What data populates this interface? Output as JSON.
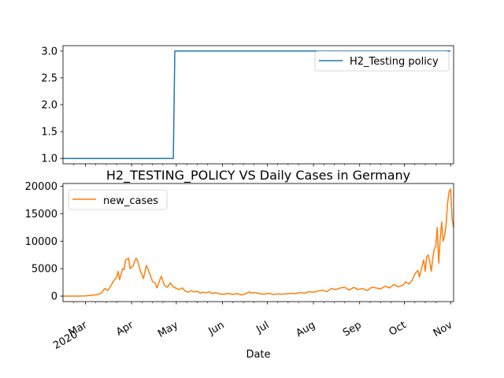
{
  "chart_data": [
    {
      "type": "line",
      "title": "",
      "xlabel": "",
      "ylabel": "",
      "ylim": [
        0.9,
        3.1
      ],
      "yticks": [
        "1.0",
        "1.5",
        "2.0",
        "2.5",
        "3.0"
      ],
      "legend_position": "top-right",
      "series": [
        {
          "name": "H2_Testing policy",
          "color": "#1f77b4",
          "points": [
            [
              "2020-02-15",
              1
            ],
            [
              "2020-04-29",
              1
            ],
            [
              "2020-04-30",
              3
            ],
            [
              "2020-11-01",
              3
            ]
          ]
        }
      ]
    },
    {
      "type": "line",
      "title": "H2_TESTING_POLICY VS Daily Cases in Germany",
      "xlabel": "Date",
      "ylabel": "",
      "ylim": [
        -1000,
        20500
      ],
      "yticks": [
        "0",
        "5000",
        "10000",
        "15000",
        "20000"
      ],
      "xticks": [
        "Mar\n2020",
        "Apr",
        "May",
        "Jun",
        "Jul",
        "Aug",
        "Sep",
        "Oct",
        "Nov"
      ],
      "legend_position": "top-left",
      "series": [
        {
          "name": "new_cases",
          "color": "#ff7f0e",
          "points": [
            [
              "2020-02-15",
              0
            ],
            [
              "2020-02-25",
              10
            ],
            [
              "2020-03-01",
              50
            ],
            [
              "2020-03-05",
              150
            ],
            [
              "2020-03-09",
              250
            ],
            [
              "2020-03-12",
              600
            ],
            [
              "2020-03-14",
              1400
            ],
            [
              "2020-03-16",
              1000
            ],
            [
              "2020-03-18",
              1800
            ],
            [
              "2020-03-20",
              2800
            ],
            [
              "2020-03-22",
              3500
            ],
            [
              "2020-03-23",
              4500
            ],
            [
              "2020-03-24",
              3000
            ],
            [
              "2020-03-26",
              5000
            ],
            [
              "2020-03-27",
              4800
            ],
            [
              "2020-03-28",
              6600
            ],
            [
              "2020-03-30",
              6900
            ],
            [
              "2020-03-31",
              5000
            ],
            [
              "2020-04-02",
              5500
            ],
            [
              "2020-04-03",
              6300
            ],
            [
              "2020-04-04",
              6900
            ],
            [
              "2020-04-05",
              6500
            ],
            [
              "2020-04-07",
              4500
            ],
            [
              "2020-04-09",
              3200
            ],
            [
              "2020-04-10",
              4500
            ],
            [
              "2020-04-11",
              5600
            ],
            [
              "2020-04-13",
              4200
            ],
            [
              "2020-04-15",
              2700
            ],
            [
              "2020-04-17",
              2300
            ],
            [
              "2020-04-18",
              1500
            ],
            [
              "2020-04-20",
              3000
            ],
            [
              "2020-04-21",
              3600
            ],
            [
              "2020-04-23",
              2000
            ],
            [
              "2020-04-25",
              1600
            ],
            [
              "2020-04-27",
              2400
            ],
            [
              "2020-04-29",
              1700
            ],
            [
              "2020-05-01",
              1400
            ],
            [
              "2020-05-03",
              1200
            ],
            [
              "2020-05-05",
              1500
            ],
            [
              "2020-05-07",
              900
            ],
            [
              "2020-05-09",
              700
            ],
            [
              "2020-05-11",
              1000
            ],
            [
              "2020-05-13",
              750
            ],
            [
              "2020-05-15",
              900
            ],
            [
              "2020-05-17",
              550
            ],
            [
              "2020-05-19",
              700
            ],
            [
              "2020-05-21",
              600
            ],
            [
              "2020-05-23",
              800
            ],
            [
              "2020-05-25",
              450
            ],
            [
              "2020-05-27",
              650
            ],
            [
              "2020-05-30",
              400
            ],
            [
              "2020-06-02",
              350
            ],
            [
              "2020-06-05",
              500
            ],
            [
              "2020-06-08",
              300
            ],
            [
              "2020-06-11",
              450
            ],
            [
              "2020-06-14",
              200
            ],
            [
              "2020-06-17",
              500
            ],
            [
              "2020-06-19",
              800
            ],
            [
              "2020-06-20",
              550
            ],
            [
              "2020-06-23",
              650
            ],
            [
              "2020-06-26",
              450
            ],
            [
              "2020-06-29",
              350
            ],
            [
              "2020-07-02",
              500
            ],
            [
              "2020-07-05",
              300
            ],
            [
              "2020-07-08",
              400
            ],
            [
              "2020-07-11",
              350
            ],
            [
              "2020-07-14",
              450
            ],
            [
              "2020-07-17",
              500
            ],
            [
              "2020-07-20",
              450
            ],
            [
              "2020-07-23",
              650
            ],
            [
              "2020-07-26",
              550
            ],
            [
              "2020-07-29",
              800
            ],
            [
              "2020-08-01",
              700
            ],
            [
              "2020-08-04",
              900
            ],
            [
              "2020-08-07",
              1100
            ],
            [
              "2020-08-10",
              800
            ],
            [
              "2020-08-13",
              1400
            ],
            [
              "2020-08-16",
              1200
            ],
            [
              "2020-08-19",
              1500
            ],
            [
              "2020-08-22",
              1600
            ],
            [
              "2020-08-25",
              1100
            ],
            [
              "2020-08-28",
              1600
            ],
            [
              "2020-08-31",
              1200
            ],
            [
              "2020-09-03",
              1400
            ],
            [
              "2020-09-06",
              1000
            ],
            [
              "2020-09-09",
              1600
            ],
            [
              "2020-09-12",
              1500
            ],
            [
              "2020-09-15",
              1300
            ],
            [
              "2020-09-18",
              1800
            ],
            [
              "2020-09-21",
              1500
            ],
            [
              "2020-09-24",
              2100
            ],
            [
              "2020-09-27",
              1700
            ],
            [
              "2020-09-30",
              2000
            ],
            [
              "2020-10-02",
              2600
            ],
            [
              "2020-10-04",
              2200
            ],
            [
              "2020-10-06",
              2800
            ],
            [
              "2020-10-08",
              4000
            ],
            [
              "2020-10-10",
              4700
            ],
            [
              "2020-10-11",
              3500
            ],
            [
              "2020-10-13",
              5500
            ],
            [
              "2020-10-14",
              6600
            ],
            [
              "2020-10-15",
              4500
            ],
            [
              "2020-10-16",
              7200
            ],
            [
              "2020-10-17",
              7500
            ],
            [
              "2020-10-18",
              6300
            ],
            [
              "2020-10-19",
              4500
            ],
            [
              "2020-10-20",
              6800
            ],
            [
              "2020-10-21",
              8500
            ],
            [
              "2020-10-22",
              9000
            ],
            [
              "2020-10-23",
              12500
            ],
            [
              "2020-10-24",
              6000
            ],
            [
              "2020-10-25",
              10500
            ],
            [
              "2020-10-26",
              13500
            ],
            [
              "2020-10-27",
              10000
            ],
            [
              "2020-10-28",
              11000
            ],
            [
              "2020-10-29",
              13000
            ],
            [
              "2020-10-30",
              17000
            ],
            [
              "2020-10-31",
              19000
            ],
            [
              "2020-11-01",
              19500
            ],
            [
              "2020-11-02",
              14000
            ],
            [
              "2020-11-03",
              12500
            ]
          ]
        }
      ]
    }
  ]
}
